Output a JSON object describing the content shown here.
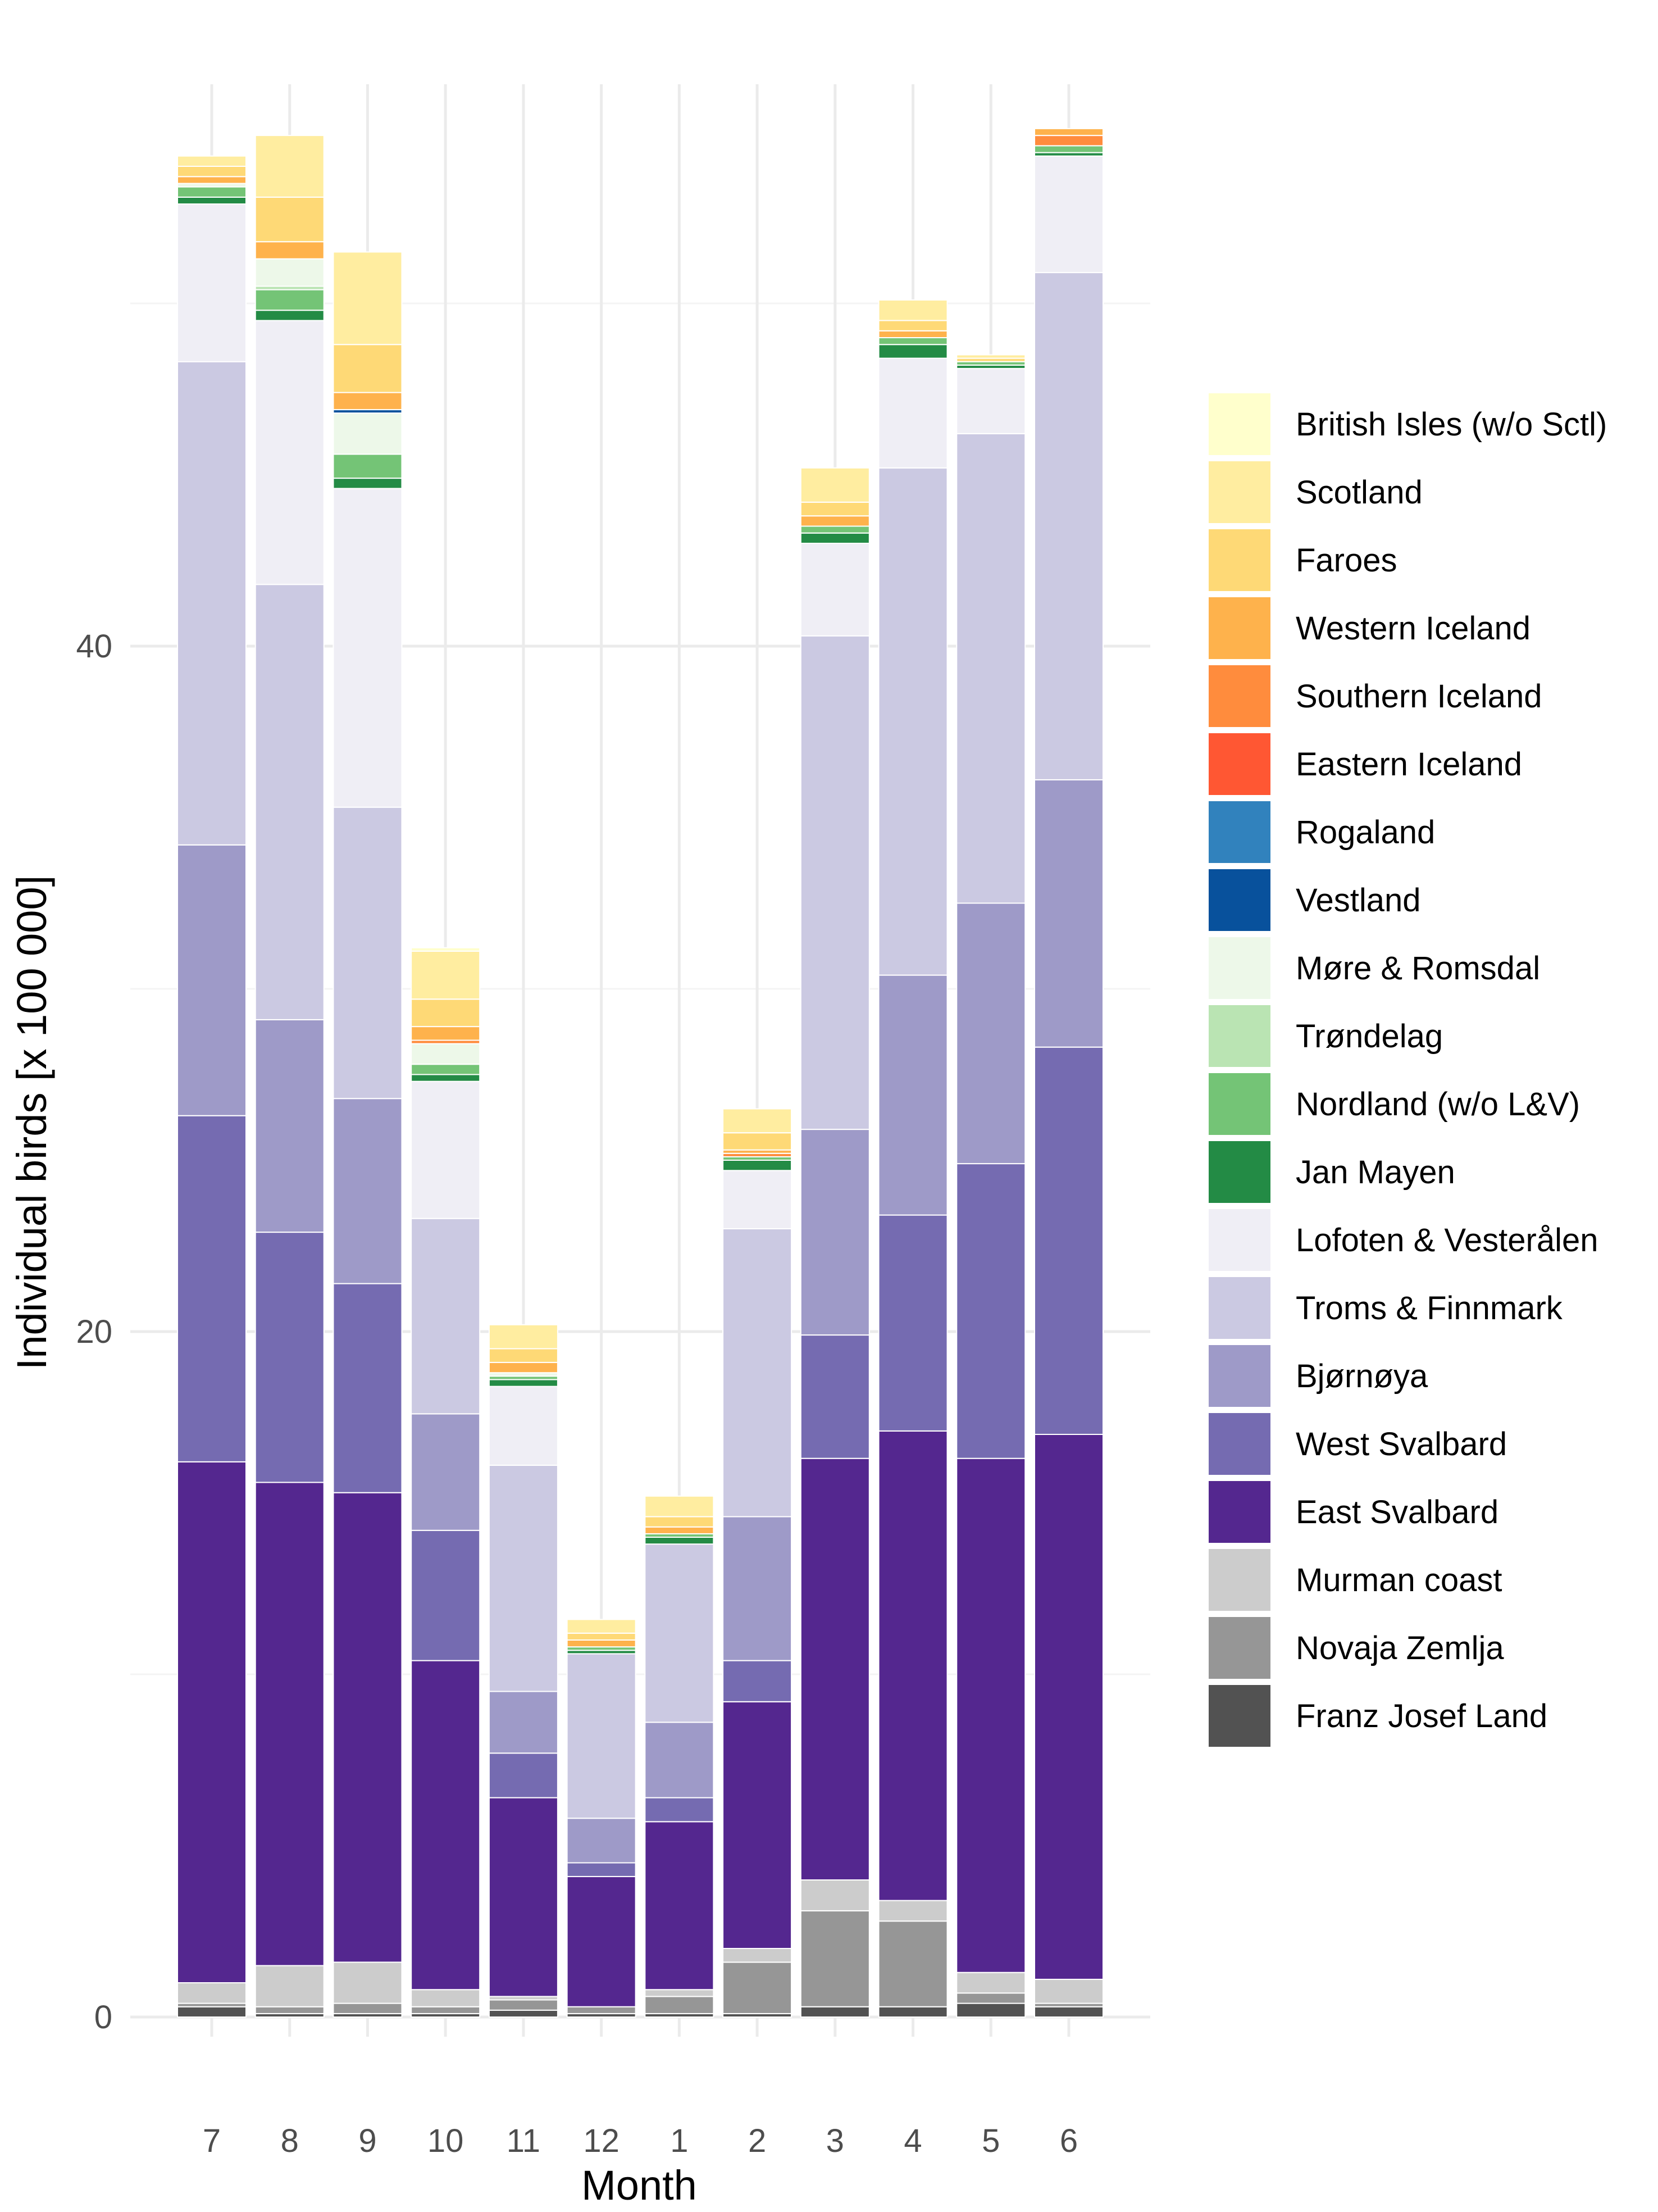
{
  "chart_data": {
    "type": "bar",
    "stacked": true,
    "xlabel": "Month",
    "ylabel": "Individual birds [x 100 000]",
    "ylim": [
      0,
      59
    ],
    "yticks": [
      0,
      20,
      40
    ],
    "grid": true,
    "legend_position": "right",
    "categories": [
      "7",
      "8",
      "9",
      "10",
      "11",
      "12",
      "1",
      "2",
      "3",
      "4",
      "5",
      "6"
    ],
    "series": [
      {
        "name": "Franz Josef Land",
        "color": "#525252",
        "values": [
          0.3,
          0.1,
          0.1,
          0.1,
          0.2,
          0.1,
          0.1,
          0.1,
          0.3,
          0.3,
          0.4,
          0.3
        ]
      },
      {
        "name": "Novaja Zemlja",
        "color": "#969696",
        "values": [
          0.1,
          0.2,
          0.3,
          0.2,
          0.3,
          0.2,
          0.5,
          1.5,
          2.8,
          2.5,
          0.3,
          0.1
        ]
      },
      {
        "name": "Murman coast",
        "color": "#cccccc",
        "values": [
          0.6,
          1.2,
          1.2,
          0.5,
          0.1,
          0.0,
          0.2,
          0.4,
          0.9,
          0.6,
          0.6,
          0.7
        ]
      },
      {
        "name": "East Svalbard",
        "color": "#54278f",
        "values": [
          15.2,
          14.1,
          13.7,
          9.6,
          5.8,
          3.8,
          4.9,
          7.2,
          12.3,
          13.7,
          15.0,
          15.9
        ]
      },
      {
        "name": "West Svalbard",
        "color": "#756bb1",
        "values": [
          10.1,
          7.3,
          6.1,
          3.8,
          1.3,
          0.4,
          0.7,
          1.2,
          3.6,
          6.3,
          8.6,
          11.3
        ]
      },
      {
        "name": "Bjørnøya",
        "color": "#9e9ac8",
        "values": [
          7.9,
          6.2,
          5.4,
          3.4,
          1.8,
          1.3,
          2.2,
          4.2,
          6.0,
          7.0,
          7.6,
          7.8
        ]
      },
      {
        "name": "Troms & Finnmark",
        "color": "#cbc9e2",
        "values": [
          14.1,
          12.7,
          8.5,
          5.7,
          6.6,
          4.8,
          5.2,
          8.4,
          14.4,
          14.8,
          13.7,
          14.8
        ]
      },
      {
        "name": "Lofoten & Vesterålen",
        "color": "#efeef5",
        "values": [
          4.6,
          7.7,
          9.3,
          4.0,
          2.3,
          0.0,
          0.0,
          1.7,
          2.7,
          3.2,
          1.9,
          3.4
        ]
      },
      {
        "name": "Jan Mayen",
        "color": "#238b45",
        "values": [
          0.2,
          0.3,
          0.3,
          0.2,
          0.2,
          0.1,
          0.2,
          0.3,
          0.3,
          0.4,
          0.1,
          0.1
        ]
      },
      {
        "name": "Nordland (w/o L&V)",
        "color": "#74c476",
        "values": [
          0.3,
          0.6,
          0.7,
          0.3,
          0.1,
          0.1,
          0.1,
          0.1,
          0.2,
          0.2,
          0.1,
          0.2
        ]
      },
      {
        "name": "Trøndelag",
        "color": "#bae4b3",
        "values": [
          0.0,
          0.1,
          0.0,
          0.0,
          0.0,
          0.0,
          0.0,
          0.0,
          0.0,
          0.0,
          0.0,
          0.0
        ]
      },
      {
        "name": "Møre & Romsdal",
        "color": "#edf8e9",
        "values": [
          0.1,
          0.8,
          1.2,
          0.6,
          0.1,
          0.0,
          0.0,
          0.0,
          0.0,
          0.0,
          0.0,
          0.0
        ]
      },
      {
        "name": "Vestland",
        "color": "#08519c",
        "values": [
          0.0,
          0.0,
          0.1,
          0.0,
          0.0,
          0.0,
          0.0,
          0.0,
          0.0,
          0.0,
          0.0,
          0.0
        ]
      },
      {
        "name": "Rogaland",
        "color": "#3182bd",
        "values": [
          0.0,
          0.0,
          0.0,
          0.0,
          0.0,
          0.0,
          0.0,
          0.0,
          0.0,
          0.0,
          0.0,
          0.0
        ]
      },
      {
        "name": "Eastern Iceland",
        "color": "#ff5733",
        "values": [
          0.0,
          0.0,
          0.0,
          0.0,
          0.0,
          0.0,
          0.0,
          0.0,
          0.0,
          0.0,
          0.0,
          0.0
        ]
      },
      {
        "name": "Southern Iceland",
        "color": "#ff8c3d",
        "values": [
          0.0,
          0.0,
          0.0,
          0.1,
          0.0,
          0.0,
          0.0,
          0.1,
          0.0,
          0.0,
          0.0,
          0.3
        ]
      },
      {
        "name": "Western Iceland",
        "color": "#feb24c",
        "values": [
          0.2,
          0.5,
          0.5,
          0.4,
          0.3,
          0.2,
          0.2,
          0.1,
          0.3,
          0.2,
          0.0,
          0.2
        ]
      },
      {
        "name": "Faroes",
        "color": "#fed976",
        "values": [
          0.3,
          1.3,
          1.4,
          0.8,
          0.4,
          0.2,
          0.3,
          0.5,
          0.4,
          0.3,
          0.1,
          0.0
        ]
      },
      {
        "name": "Scotland",
        "color": "#ffeda0",
        "values": [
          0.3,
          1.8,
          2.7,
          1.4,
          0.7,
          0.4,
          0.6,
          0.7,
          1.0,
          0.6,
          0.1,
          0.0
        ]
      },
      {
        "name": "British Isles (w/o Sctl)",
        "color": "#ffffcc",
        "values": [
          0.0,
          0.0,
          0.0,
          0.1,
          0.0,
          0.0,
          0.0,
          0.0,
          0.0,
          0.0,
          0.0,
          0.0
        ]
      }
    ]
  }
}
